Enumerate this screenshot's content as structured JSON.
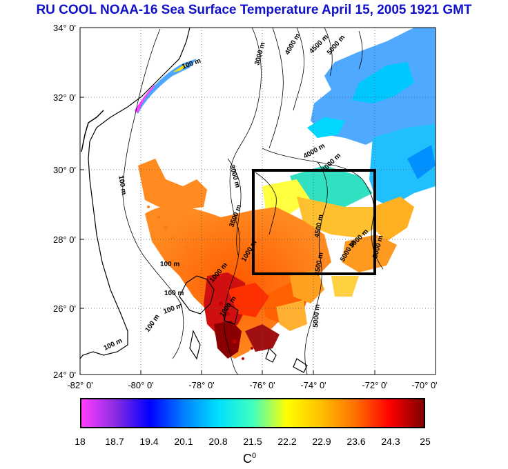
{
  "title": "RU COOL  NOAA-16 Sea Surface Temperature April 15, 2005 1921 GMT",
  "map": {
    "lat_labels": [
      "34° 0'",
      "32° 0'",
      "30° 0'",
      "28° 0'",
      "26° 0'",
      "24° 0'"
    ],
    "lon_labels": [
      "-82° 0'",
      "-80° 0'",
      "-78° 0'",
      "-76° 0'",
      "-74° 0'",
      "-72° 0'",
      "-70° 0'"
    ],
    "lat_range": [
      24,
      34
    ],
    "lon_range": [
      -82,
      -70
    ],
    "grid": true,
    "study_box": {
      "lon": [
        -76,
        -72
      ],
      "lat": [
        27,
        30
      ]
    },
    "contour_labels": [
      "100 m",
      "100 m",
      "100 m",
      "100 m",
      "100 m",
      "100 m",
      "100 m",
      "1000 m",
      "1000 m",
      "3000 m",
      "3000 m",
      "3500 m",
      "4000 m",
      "4000 m",
      "4500 m",
      "5000 m",
      "5000 m",
      "5000 m",
      "5000 m",
      "5000 m",
      "4000 m",
      "4500 m",
      "3500 m",
      "1000 m"
    ]
  },
  "colorbar": {
    "ticks": [
      "18",
      "18.7",
      "19.4",
      "20.1",
      "20.8",
      "21.5",
      "22.2",
      "22.9",
      "23.6",
      "24.3",
      "25"
    ],
    "unit": "C",
    "unit_sup": "0",
    "range": [
      18,
      25
    ],
    "colors": [
      "#ff40ff",
      "#8a2be2",
      "#0000ff",
      "#0080ff",
      "#00e0ff",
      "#40ffc0",
      "#ffff00",
      "#ffc000",
      "#ff7000",
      "#ff0000",
      "#800000"
    ]
  }
}
